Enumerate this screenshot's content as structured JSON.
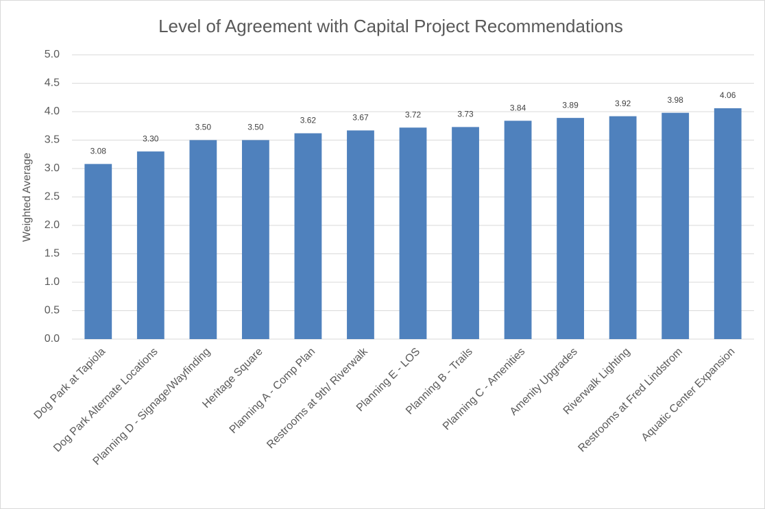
{
  "chart_data": {
    "type": "bar",
    "title": "Level of Agreement with Capital Project Recommendations",
    "y_label": "Weighted Average",
    "categories": [
      "Dog Park at Tapiola",
      "Dog Park Alternate Locations",
      "Planning D - Signage/Wayfinding",
      "Heritage Square",
      "Planning A - Comp Plan",
      "Restrooms at 9th/ Riverwalk",
      "Planning E - LOS",
      "Planning B - Trails",
      "Planning C - Amenities",
      "Amenity Upgrades",
      "Riverwalk Lighting",
      "Restrooms at Fred Lindstrom",
      "Aquatic Center Expansion"
    ],
    "values": [
      3.08,
      3.3,
      3.5,
      3.5,
      3.62,
      3.67,
      3.72,
      3.73,
      3.84,
      3.89,
      3.92,
      3.98,
      4.06
    ],
    "value_labels": [
      "3.08",
      "3.30",
      "3.50",
      "3.50",
      "3.62",
      "3.67",
      "3.72",
      "3.73",
      "3.84",
      "3.89",
      "3.92",
      "3.98",
      "4.06"
    ],
    "color": "#4f81bd",
    "ylim": [
      0,
      5
    ],
    "yticks": [
      {
        "value": 0,
        "label": "0.0"
      },
      0.5,
      {
        "value": 1,
        "label": "1.0"
      },
      1.5,
      {
        "value": 2,
        "label": "2.0"
      },
      2.5,
      {
        "value": 3,
        "label": "3.0"
      },
      3.5,
      {
        "value": 4,
        "label": "4.0"
      },
      4.5,
      {
        "value": 5,
        "label": "5.0"
      }
    ],
    "grid": true
  }
}
